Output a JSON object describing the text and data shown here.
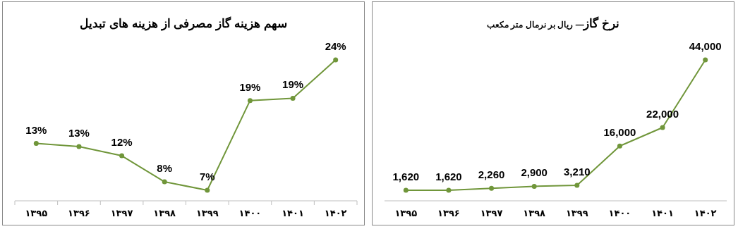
{
  "chart_data": [
    {
      "type": "line",
      "title": "سهم  هزینه گاز مصرفی از هزینه های تبدیل",
      "categories": [
        "۱۳۹۵",
        "۱۳۹۶",
        "۱۳۹۷",
        "۱۳۹۸",
        "۱۳۹۹",
        "۱۴۰۰",
        "۱۴۰۱",
        "۱۴۰۲"
      ],
      "series": [
        {
          "color": "#70963a",
          "values": [
            13.1,
            12.7,
            11.5,
            8.1,
            7,
            18.7,
            19,
            24
          ],
          "value_labels": [
            "13%",
            "13%",
            "12%",
            "8%",
            "7%",
            "19%",
            "19%",
            "24%"
          ]
        }
      ],
      "marker": "circle",
      "tick_labels": "x"
    },
    {
      "type": "line",
      "title": "نرخ گاز",
      "subtitle": "— ریال بر نرمال متر مکعب",
      "categories": [
        "۱۳۹۵",
        "۱۳۹۶",
        "۱۳۹۷",
        "۱۳۹۸",
        "۱۳۹۹",
        "۱۴۰۰",
        "۱۴۰۱",
        "۱۴۰۲"
      ],
      "series": [
        {
          "color": "#70963a",
          "values": [
            1620,
            1620,
            2260,
            2900,
            3210,
            16000,
            22000,
            44000
          ],
          "value_labels": [
            "1,620",
            "1,620",
            "2,260",
            "2,900",
            "3,210",
            "16,000",
            "22,000",
            "44,000"
          ]
        }
      ],
      "marker": "circle",
      "tick_labels": "x"
    }
  ]
}
